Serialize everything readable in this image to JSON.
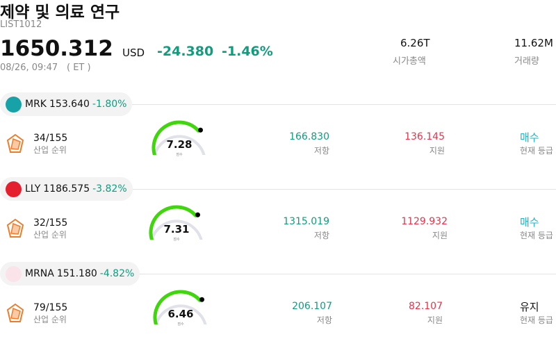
{
  "header": {
    "title": "제약 및 의료 연구",
    "code": "LIST1012",
    "price": "1650.312",
    "currency": "USD",
    "change": "-24.380",
    "change_pct": "-1.46%",
    "time": "08/26, 09:47",
    "timezone": "( ET )",
    "stats": [
      {
        "value": "6.26T",
        "label": "시가총액"
      },
      {
        "value": "11.62M",
        "label": "거래량"
      }
    ]
  },
  "items": [
    {
      "ticker": "MRK",
      "price": "153.640",
      "change": "-1.80%",
      "rank": "34/155",
      "rank_label": "산업 순위",
      "score": "7.28",
      "score_label": "점수",
      "resistance": "166.830",
      "resistance_label": "저항",
      "support": "136.145",
      "support_label": "지원",
      "rating": "매수",
      "rating_label": "현재 등급"
    },
    {
      "ticker": "LLY",
      "price": "1186.575",
      "change": "-3.82%",
      "rank": "32/155",
      "rank_label": "산업 순위",
      "score": "7.31",
      "score_label": "점수",
      "resistance": "1315.019",
      "resistance_label": "저항",
      "support": "1129.932",
      "support_label": "지원",
      "rating": "매수",
      "rating_label": "현재 등급"
    },
    {
      "ticker": "MRNA",
      "price": "151.180",
      "change": "-4.82%",
      "rank": "79/155",
      "rank_label": "산업 순위",
      "score": "6.46",
      "score_label": "점수",
      "resistance": "206.107",
      "resistance_label": "저항",
      "support": "82.107",
      "support_label": "지원",
      "rating": "유지",
      "rating_label": "현재 등급"
    }
  ]
}
